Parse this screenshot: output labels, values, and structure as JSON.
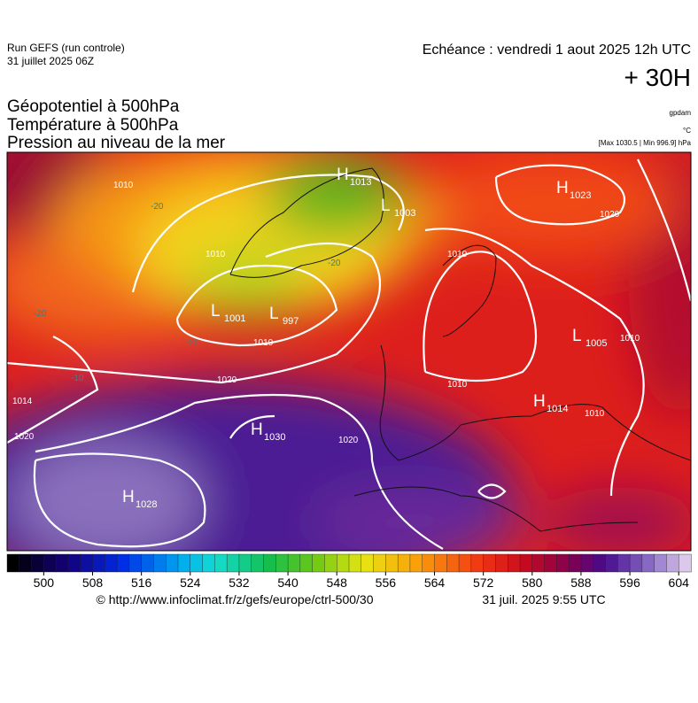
{
  "header": {
    "run": "Run GEFS (run controle)",
    "run_date": "31 juillet 2025 06Z",
    "valid": "Echéance : vendredi 1 aout 2025 12h UTC",
    "lead": "+ 30H",
    "fields": [
      "Géopotentiel à 500hPa",
      "Température à 500hPa",
      "Pression au niveau de la mer"
    ],
    "units": [
      "gpdam",
      "°C",
      "[Max 1030.5 | Min 996.9] hPa"
    ]
  },
  "pressure_centers": [
    {
      "letter": "H",
      "value": 1013
    },
    {
      "letter": "L",
      "value": 1003
    },
    {
      "letter": "H",
      "value": 1023
    },
    {
      "letter": "L",
      "value": 1001
    },
    {
      "letter": "L",
      "value": 997
    },
    {
      "letter": "L",
      "value": 1005
    },
    {
      "letter": "H",
      "value": 1014
    },
    {
      "letter": "H",
      "value": 1030
    },
    {
      "letter": "H",
      "value": 1028
    }
  ],
  "contour_labels": [
    "1010",
    "1010",
    "1010",
    "1010",
    "1020",
    "1020",
    "1014",
    "1020",
    "1010",
    "1010",
    "1010",
    "1020",
    "-20",
    "-20",
    "-20",
    "-10",
    "-20"
  ],
  "colorbar": {
    "lim": [
      494,
      606
    ],
    "ticks": [
      500,
      508,
      516,
      524,
      532,
      540,
      548,
      556,
      564,
      572,
      580,
      588,
      596,
      604
    ]
  },
  "footer": {
    "source": "© http://www.infoclimat.fr/z/gefs/europe/ctrl-500/30",
    "generated": "31 juil. 2025  9:55 UTC"
  }
}
